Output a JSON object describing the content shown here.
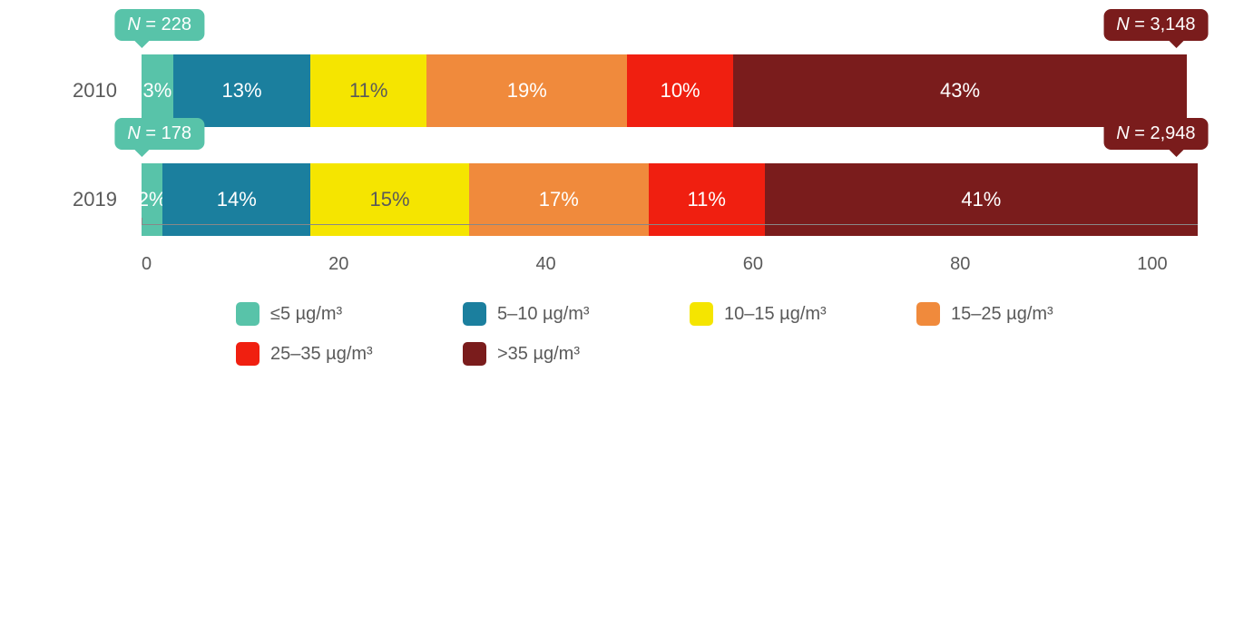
{
  "chart": {
    "type": "stacked-bar-horizontal",
    "background_color": "#ffffff",
    "text_color": "#5a5a5a",
    "bar_label_color": "#ffffff",
    "label_fontsize": 22,
    "callout_fontsize": 20,
    "axis_fontsize": 20,
    "legend_fontsize": 20,
    "xlim": [
      0,
      100
    ],
    "xtick_step": 20,
    "xticks": [
      "0",
      "20",
      "40",
      "60",
      "80",
      "100"
    ],
    "categories": [
      {
        "key": "c0",
        "label": "≤5 µg/m³",
        "color": "#58c3a9"
      },
      {
        "key": "c1",
        "label": "5–10 µg/m³",
        "color": "#1b7f9e"
      },
      {
        "key": "c2",
        "label": "10–15 µg/m³",
        "color": "#f5e500"
      },
      {
        "key": "c3",
        "label": "15–25 µg/m³",
        "color": "#f08a3c"
      },
      {
        "key": "c4",
        "label": "25–35 µg/m³",
        "color": "#f01f10"
      },
      {
        "key": "c5",
        "label": ">35 µg/m³",
        "color": "#7a1c1c"
      }
    ],
    "rows": [
      {
        "label": "2010",
        "callout_left": {
          "text": "N = 228",
          "bg": "#58c3a9"
        },
        "callout_right": {
          "text": "N = 3,148",
          "bg": "#7a1c1c"
        },
        "segments": [
          {
            "value": 3,
            "display": "3%",
            "color": "#58c3a9",
            "text_color": "#ffffff"
          },
          {
            "value": 13,
            "display": "13%",
            "color": "#1b7f9e",
            "text_color": "#ffffff"
          },
          {
            "value": 11,
            "display": "11%",
            "color": "#f5e500",
            "text_color": "#5a5a5a"
          },
          {
            "value": 19,
            "display": "19%",
            "color": "#f08a3c",
            "text_color": "#ffffff"
          },
          {
            "value": 10,
            "display": "10%",
            "color": "#f01f10",
            "text_color": "#ffffff"
          },
          {
            "value": 43,
            "display": "43%",
            "color": "#7a1c1c",
            "text_color": "#ffffff"
          }
        ]
      },
      {
        "label": "2019",
        "callout_left": {
          "text": "N = 178",
          "bg": "#58c3a9"
        },
        "callout_right": {
          "text": "N = 2,948",
          "bg": "#7a1c1c"
        },
        "segments": [
          {
            "value": 2,
            "display": "2%",
            "color": "#58c3a9",
            "text_color": "#ffffff"
          },
          {
            "value": 14,
            "display": "14%",
            "color": "#1b7f9e",
            "text_color": "#ffffff"
          },
          {
            "value": 15,
            "display": "15%",
            "color": "#f5e500",
            "text_color": "#5a5a5a"
          },
          {
            "value": 17,
            "display": "17%",
            "color": "#f08a3c",
            "text_color": "#ffffff"
          },
          {
            "value": 11,
            "display": "11%",
            "color": "#f01f10",
            "text_color": "#ffffff"
          },
          {
            "value": 41,
            "display": "41%",
            "color": "#7a1c1c",
            "text_color": "#ffffff"
          }
        ]
      }
    ]
  }
}
